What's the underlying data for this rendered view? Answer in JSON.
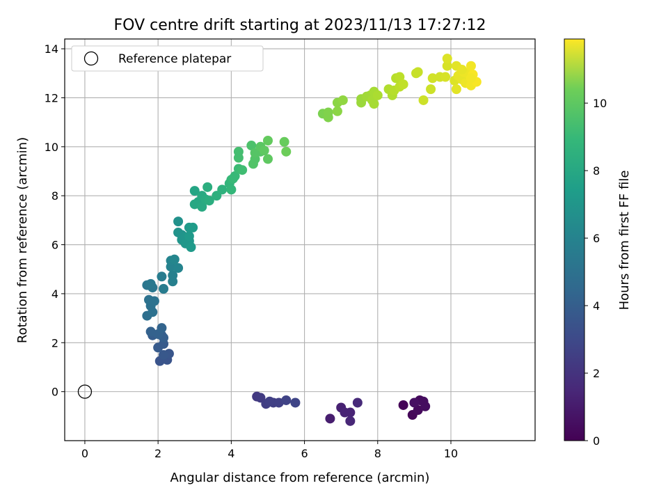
{
  "chart_data": {
    "type": "scatter",
    "title": "FOV centre drift starting at 2023/11/13 17:27:12",
    "xlabel": "Angular distance from reference (arcmin)",
    "ylabel": "Rotation from reference (arcmin)",
    "xlim": [
      -0.55,
      12.3
    ],
    "ylim": [
      -2.0,
      14.4
    ],
    "xticks": [
      0,
      2,
      4,
      6,
      8,
      10
    ],
    "yticks": [
      0,
      2,
      4,
      6,
      8,
      10,
      12,
      14
    ],
    "grid": true,
    "colormap": "viridis",
    "colorbar": {
      "label": "Hours from first FF file",
      "range": [
        0,
        11.9
      ],
      "ticks": [
        0,
        2,
        4,
        6,
        8,
        10
      ]
    },
    "legend": {
      "placement": "top-left",
      "entries": [
        {
          "label": "Reference platepar",
          "marker": "hollow-circle"
        }
      ]
    },
    "reference_point": {
      "x": 0,
      "y": 0
    },
    "points": [
      {
        "x": 8.7,
        "y": -0.55,
        "t": 0.1
      },
      {
        "x": 8.95,
        "y": -0.95,
        "t": 0.2
      },
      {
        "x": 9.1,
        "y": -0.75,
        "t": 0.3
      },
      {
        "x": 9.15,
        "y": -0.35,
        "t": 0.3
      },
      {
        "x": 9.25,
        "y": -0.4,
        "t": 0.4
      },
      {
        "x": 9.3,
        "y": -0.6,
        "t": 0.4
      },
      {
        "x": 9.0,
        "y": -0.45,
        "t": 0.5
      },
      {
        "x": 6.7,
        "y": -1.1,
        "t": 1.0
      },
      {
        "x": 7.0,
        "y": -0.65,
        "t": 1.1
      },
      {
        "x": 7.1,
        "y": -0.85,
        "t": 1.2
      },
      {
        "x": 7.25,
        "y": -0.85,
        "t": 1.2
      },
      {
        "x": 7.25,
        "y": -1.2,
        "t": 1.3
      },
      {
        "x": 7.45,
        "y": -0.45,
        "t": 1.4
      },
      {
        "x": 4.7,
        "y": -0.2,
        "t": 2.0
      },
      {
        "x": 4.8,
        "y": -0.25,
        "t": 2.1
      },
      {
        "x": 4.95,
        "y": -0.5,
        "t": 2.2
      },
      {
        "x": 5.15,
        "y": -0.45,
        "t": 2.2
      },
      {
        "x": 5.3,
        "y": -0.45,
        "t": 2.3
      },
      {
        "x": 5.5,
        "y": -0.35,
        "t": 2.4
      },
      {
        "x": 5.75,
        "y": -0.45,
        "t": 2.5
      },
      {
        "x": 5.05,
        "y": -0.4,
        "t": 2.3
      },
      {
        "x": 2.05,
        "y": 1.25,
        "t": 3.1
      },
      {
        "x": 2.25,
        "y": 1.3,
        "t": 3.1
      },
      {
        "x": 2.3,
        "y": 1.55,
        "t": 3.2
      },
      {
        "x": 2.15,
        "y": 1.5,
        "t": 3.3
      },
      {
        "x": 2.0,
        "y": 1.8,
        "t": 3.4
      },
      {
        "x": 2.15,
        "y": 1.95,
        "t": 3.4
      },
      {
        "x": 1.85,
        "y": 2.3,
        "t": 3.5
      },
      {
        "x": 2.1,
        "y": 2.3,
        "t": 3.6
      },
      {
        "x": 2.15,
        "y": 2.2,
        "t": 3.6
      },
      {
        "x": 1.8,
        "y": 2.45,
        "t": 3.7
      },
      {
        "x": 2.0,
        "y": 2.35,
        "t": 3.7
      },
      {
        "x": 2.1,
        "y": 2.6,
        "t": 3.8
      },
      {
        "x": 1.7,
        "y": 3.1,
        "t": 4.3
      },
      {
        "x": 1.85,
        "y": 3.25,
        "t": 4.4
      },
      {
        "x": 1.8,
        "y": 3.5,
        "t": 4.4
      },
      {
        "x": 1.75,
        "y": 3.75,
        "t": 4.5
      },
      {
        "x": 1.9,
        "y": 3.7,
        "t": 4.5
      },
      {
        "x": 1.7,
        "y": 4.35,
        "t": 4.7
      },
      {
        "x": 1.85,
        "y": 4.25,
        "t": 4.7
      },
      {
        "x": 1.8,
        "y": 4.4,
        "t": 4.8
      },
      {
        "x": 2.15,
        "y": 4.2,
        "t": 5.0
      },
      {
        "x": 2.1,
        "y": 4.7,
        "t": 5.0
      },
      {
        "x": 2.4,
        "y": 4.5,
        "t": 5.2
      },
      {
        "x": 2.4,
        "y": 4.75,
        "t": 5.2
      },
      {
        "x": 2.35,
        "y": 5.1,
        "t": 5.3
      },
      {
        "x": 2.55,
        "y": 5.05,
        "t": 5.4
      },
      {
        "x": 2.35,
        "y": 5.35,
        "t": 5.4
      },
      {
        "x": 2.45,
        "y": 5.4,
        "t": 5.5
      },
      {
        "x": 2.55,
        "y": 6.95,
        "t": 6.0
      },
      {
        "x": 2.55,
        "y": 6.5,
        "t": 6.1
      },
      {
        "x": 2.65,
        "y": 6.4,
        "t": 6.1
      },
      {
        "x": 2.65,
        "y": 6.2,
        "t": 6.2
      },
      {
        "x": 2.75,
        "y": 6.3,
        "t": 6.2
      },
      {
        "x": 2.75,
        "y": 6.05,
        "t": 6.3
      },
      {
        "x": 2.85,
        "y": 6.15,
        "t": 6.3
      },
      {
        "x": 2.9,
        "y": 5.9,
        "t": 6.4
      },
      {
        "x": 2.85,
        "y": 6.7,
        "t": 6.4
      },
      {
        "x": 2.95,
        "y": 6.7,
        "t": 6.5
      },
      {
        "x": 2.85,
        "y": 6.35,
        "t": 6.4
      },
      {
        "x": 3.0,
        "y": 8.2,
        "t": 7.0
      },
      {
        "x": 3.0,
        "y": 7.65,
        "t": 7.1
      },
      {
        "x": 3.1,
        "y": 7.75,
        "t": 7.1
      },
      {
        "x": 3.2,
        "y": 7.55,
        "t": 7.2
      },
      {
        "x": 3.2,
        "y": 8.0,
        "t": 7.2
      },
      {
        "x": 3.3,
        "y": 7.85,
        "t": 7.3
      },
      {
        "x": 3.35,
        "y": 8.35,
        "t": 7.4
      },
      {
        "x": 3.4,
        "y": 7.8,
        "t": 7.4
      },
      {
        "x": 3.6,
        "y": 8.0,
        "t": 7.5
      },
      {
        "x": 3.75,
        "y": 8.25,
        "t": 7.6
      },
      {
        "x": 3.95,
        "y": 8.5,
        "t": 7.8
      },
      {
        "x": 4.0,
        "y": 8.65,
        "t": 7.9
      },
      {
        "x": 4.0,
        "y": 8.25,
        "t": 7.9
      },
      {
        "x": 4.05,
        "y": 8.7,
        "t": 8.0
      },
      {
        "x": 4.1,
        "y": 8.8,
        "t": 8.0
      },
      {
        "x": 4.2,
        "y": 9.1,
        "t": 8.1
      },
      {
        "x": 4.3,
        "y": 9.05,
        "t": 8.2
      },
      {
        "x": 4.2,
        "y": 9.55,
        "t": 8.3
      },
      {
        "x": 4.2,
        "y": 9.8,
        "t": 8.3
      },
      {
        "x": 4.55,
        "y": 10.05,
        "t": 8.5
      },
      {
        "x": 4.6,
        "y": 9.3,
        "t": 8.6
      },
      {
        "x": 4.65,
        "y": 9.5,
        "t": 8.6
      },
      {
        "x": 4.65,
        "y": 9.75,
        "t": 8.7
      },
      {
        "x": 4.8,
        "y": 9.8,
        "t": 8.7
      },
      {
        "x": 4.8,
        "y": 10.0,
        "t": 8.8
      },
      {
        "x": 4.9,
        "y": 9.85,
        "t": 8.9
      },
      {
        "x": 5.0,
        "y": 9.5,
        "t": 8.9
      },
      {
        "x": 5.0,
        "y": 10.25,
        "t": 9.0
      },
      {
        "x": 5.45,
        "y": 10.2,
        "t": 9.1
      },
      {
        "x": 5.5,
        "y": 9.8,
        "t": 9.2
      },
      {
        "x": 6.5,
        "y": 11.35,
        "t": 9.5
      },
      {
        "x": 6.65,
        "y": 11.4,
        "t": 9.6
      },
      {
        "x": 6.65,
        "y": 11.2,
        "t": 9.6
      },
      {
        "x": 6.9,
        "y": 11.8,
        "t": 9.8
      },
      {
        "x": 6.9,
        "y": 11.45,
        "t": 9.8
      },
      {
        "x": 7.05,
        "y": 11.9,
        "t": 9.9
      },
      {
        "x": 7.55,
        "y": 11.95,
        "t": 10.1
      },
      {
        "x": 7.55,
        "y": 11.8,
        "t": 10.1
      },
      {
        "x": 7.7,
        "y": 12.05,
        "t": 10.2
      },
      {
        "x": 7.8,
        "y": 12.1,
        "t": 10.2
      },
      {
        "x": 7.85,
        "y": 11.9,
        "t": 10.3
      },
      {
        "x": 7.9,
        "y": 11.75,
        "t": 10.3
      },
      {
        "x": 7.9,
        "y": 12.25,
        "t": 10.3
      },
      {
        "x": 8.0,
        "y": 12.1,
        "t": 10.4
      },
      {
        "x": 8.3,
        "y": 12.35,
        "t": 10.5
      },
      {
        "x": 8.4,
        "y": 12.1,
        "t": 10.5
      },
      {
        "x": 8.45,
        "y": 12.3,
        "t": 10.6
      },
      {
        "x": 8.5,
        "y": 12.8,
        "t": 10.6
      },
      {
        "x": 8.6,
        "y": 12.85,
        "t": 10.7
      },
      {
        "x": 8.6,
        "y": 12.45,
        "t": 10.7
      },
      {
        "x": 8.7,
        "y": 12.55,
        "t": 10.8
      },
      {
        "x": 9.05,
        "y": 13.0,
        "t": 10.9
      },
      {
        "x": 9.1,
        "y": 13.05,
        "t": 10.9
      },
      {
        "x": 9.25,
        "y": 11.9,
        "t": 11.0
      },
      {
        "x": 9.45,
        "y": 12.35,
        "t": 11.0
      },
      {
        "x": 9.5,
        "y": 12.8,
        "t": 11.1
      },
      {
        "x": 9.7,
        "y": 12.85,
        "t": 11.1
      },
      {
        "x": 9.85,
        "y": 12.85,
        "t": 11.2
      },
      {
        "x": 9.9,
        "y": 13.3,
        "t": 11.2
      },
      {
        "x": 9.9,
        "y": 13.6,
        "t": 11.3
      },
      {
        "x": 10.1,
        "y": 12.7,
        "t": 11.3
      },
      {
        "x": 10.15,
        "y": 12.35,
        "t": 11.4
      },
      {
        "x": 10.15,
        "y": 13.3,
        "t": 11.4
      },
      {
        "x": 10.2,
        "y": 12.9,
        "t": 11.5
      },
      {
        "x": 10.3,
        "y": 12.75,
        "t": 11.5
      },
      {
        "x": 10.35,
        "y": 13.05,
        "t": 11.6
      },
      {
        "x": 10.4,
        "y": 12.6,
        "t": 11.6
      },
      {
        "x": 10.45,
        "y": 13.0,
        "t": 11.6
      },
      {
        "x": 10.55,
        "y": 12.5,
        "t": 11.7
      },
      {
        "x": 10.55,
        "y": 13.3,
        "t": 11.7
      },
      {
        "x": 10.6,
        "y": 12.95,
        "t": 11.8
      },
      {
        "x": 10.7,
        "y": 12.65,
        "t": 11.8
      },
      {
        "x": 10.55,
        "y": 12.8,
        "t": 11.7
      },
      {
        "x": 10.3,
        "y": 13.15,
        "t": 11.5
      }
    ]
  }
}
